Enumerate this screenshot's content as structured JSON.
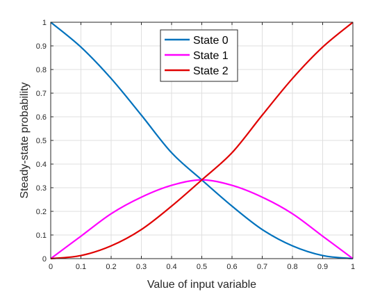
{
  "chart_data": {
    "type": "line",
    "title": "",
    "xlabel": "Value of input variable",
    "ylabel": "Steady-state probability",
    "xlim": [
      0,
      1
    ],
    "ylim": [
      0,
      1
    ],
    "x_ticks": [
      "0",
      "0.1",
      "0.2",
      "0.3",
      "0.4",
      "0.5",
      "0.6",
      "0.7",
      "0.8",
      "0.9",
      "1"
    ],
    "y_ticks": [
      "0",
      "0.1",
      "0.2",
      "0.3",
      "0.4",
      "0.5",
      "0.6",
      "0.7",
      "0.8",
      "0.9",
      "1"
    ],
    "grid": true,
    "legend_position": "top-center",
    "x": [
      0,
      0.1,
      0.2,
      0.3,
      0.4,
      0.5,
      0.6,
      0.7,
      0.8,
      0.9,
      1
    ],
    "series": [
      {
        "name": "State 0",
        "color": "#0072BD",
        "values": [
          1.0,
          0.895,
          0.762,
          0.607,
          0.448,
          0.333,
          0.222,
          0.123,
          0.054,
          0.013,
          0.0
        ]
      },
      {
        "name": "State 1",
        "color": "#FF00FF",
        "values": [
          0.0,
          0.095,
          0.19,
          0.26,
          0.31,
          0.333,
          0.31,
          0.26,
          0.19,
          0.095,
          0.0
        ]
      },
      {
        "name": "State 2",
        "color": "#E00000",
        "values": [
          0.0,
          0.013,
          0.054,
          0.123,
          0.222,
          0.333,
          0.448,
          0.607,
          0.762,
          0.895,
          1.0
        ]
      }
    ]
  }
}
